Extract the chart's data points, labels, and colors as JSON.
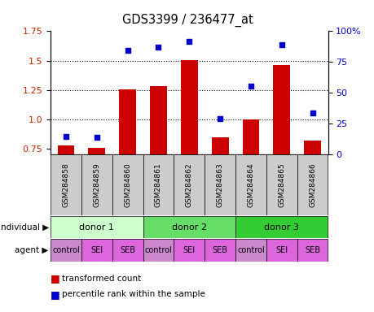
{
  "title": "GDS3399 / 236477_at",
  "samples": [
    "GSM284858",
    "GSM284859",
    "GSM284860",
    "GSM284861",
    "GSM284862",
    "GSM284863",
    "GSM284864",
    "GSM284865",
    "GSM284866"
  ],
  "bar_values": [
    0.775,
    0.755,
    1.255,
    1.285,
    1.505,
    0.845,
    0.995,
    1.465,
    0.815
  ],
  "scatter_values": [
    0.855,
    0.845,
    1.585,
    1.615,
    1.665,
    1.005,
    1.285,
    1.635,
    1.055
  ],
  "bar_bottom": 0.7,
  "ylim": [
    0.7,
    1.75
  ],
  "yticks_left": [
    0.75,
    1.0,
    1.25,
    1.5,
    1.75
  ],
  "yticks_right": [
    0,
    25,
    50,
    75,
    100
  ],
  "bar_color": "#cc0000",
  "scatter_color": "#0000cc",
  "donor_colors": [
    "#ccffcc",
    "#66dd66",
    "#33cc33"
  ],
  "donor_labels": [
    "donor 1",
    "donor 2",
    "donor 3"
  ],
  "donor_ranges": [
    [
      0,
      3
    ],
    [
      3,
      6
    ],
    [
      6,
      9
    ]
  ],
  "agent_labels": [
    "control",
    "SEI",
    "SEB",
    "control",
    "SEI",
    "SEB",
    "control",
    "SEI",
    "SEB"
  ],
  "agent_color_sei_seb": "#dd66dd",
  "agent_color_control": "#cc88cc",
  "tick_label_left_color": "#cc2200",
  "tick_label_right_color": "#0000cc",
  "sample_bg_color": "#cccccc",
  "grid_yticks": [
    1.0,
    1.25,
    1.5
  ]
}
